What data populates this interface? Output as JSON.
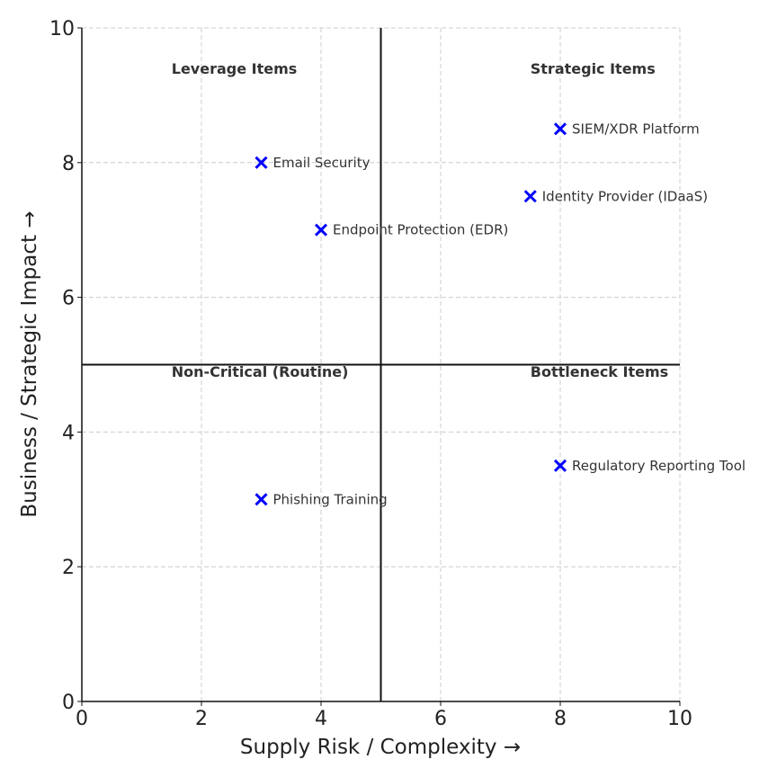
{
  "chart_data": {
    "type": "scatter",
    "xlabel": "Supply Risk / Complexity →",
    "ylabel": "Business / Strategic Impact →",
    "xlim": [
      0,
      10
    ],
    "ylim": [
      0,
      10
    ],
    "xticks": [
      "0",
      "2",
      "4",
      "6",
      "8",
      "10"
    ],
    "yticks": [
      "0",
      "2",
      "4",
      "6",
      "8",
      "10"
    ],
    "grid": true,
    "divider_lines": {
      "x": 5,
      "y": 5
    },
    "marker": "x",
    "marker_color": "#0000ff",
    "points": [
      {
        "label": "Email Security",
        "x": 3,
        "y": 8
      },
      {
        "label": "Endpoint Protection (EDR)",
        "x": 4,
        "y": 7
      },
      {
        "label": "SIEM/XDR Platform",
        "x": 8,
        "y": 8.5
      },
      {
        "label": "Identity Provider (IDaaS)",
        "x": 7.5,
        "y": 7.5
      },
      {
        "label": "Regulatory Reporting Tool",
        "x": 8,
        "y": 3.5
      },
      {
        "label": "Phishing Training",
        "x": 3,
        "y": 3
      }
    ],
    "quadrant_labels": [
      {
        "text": "Leverage Items",
        "x": 1.5,
        "y": 9.4
      },
      {
        "text": "Strategic Items",
        "x": 7.5,
        "y": 9.4
      },
      {
        "text": "Non-Critical (Routine)",
        "x": 1.5,
        "y": 4.9
      },
      {
        "text": "Bottleneck Items",
        "x": 7.5,
        "y": 4.9
      }
    ]
  }
}
